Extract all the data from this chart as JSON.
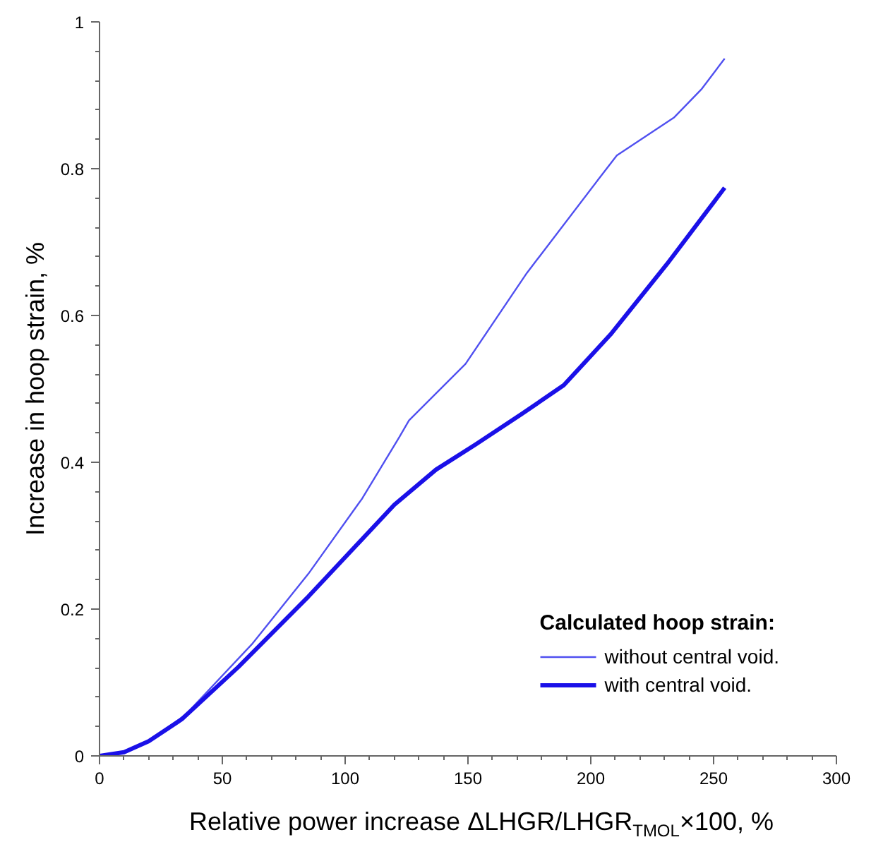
{
  "chart_data": {
    "type": "line",
    "xlabel": "Relative power increase ΔLHGR/LHGR$_{TMOL}$×100, %",
    "ylabel": "Increase in hoop strain, %",
    "legend_title": "Calculated hoop strain:",
    "legend": "bottom right",
    "xlim": [
      0,
      300
    ],
    "ylim": [
      0,
      1
    ],
    "xticks": [
      0,
      50,
      100,
      150,
      200,
      250,
      300
    ],
    "yticks": [
      0,
      0.2,
      0.4,
      0.6,
      0.8,
      1
    ],
    "grid": false,
    "marker": "none",
    "series": [
      {
        "name": "without central void.",
        "color": "#5050f0",
        "x": [
          0,
          10,
          20,
          35,
          62,
          85,
          107,
          122,
          126,
          149,
          174,
          203,
          210.6,
          234,
          245,
          254.5
        ],
        "values": [
          0,
          0.005,
          0.02,
          0.056,
          0.152,
          0.248,
          0.351,
          0.434,
          0.457,
          0.534,
          0.658,
          0.785,
          0.818,
          0.87,
          0.908,
          0.95
        ],
        "line_style": "solid"
      },
      {
        "name": "with central void.",
        "color": "#1a10e8",
        "x": [
          0,
          10,
          20,
          33.5,
          56.5,
          85,
          120,
          137,
          153,
          172,
          189,
          208,
          231,
          254.5
        ],
        "values": [
          0,
          0.005,
          0.02,
          0.05,
          0.121,
          0.217,
          0.342,
          0.39,
          0.424,
          0.466,
          0.505,
          0.574,
          0.67,
          0.774
        ],
        "line_style": "solid"
      }
    ]
  }
}
